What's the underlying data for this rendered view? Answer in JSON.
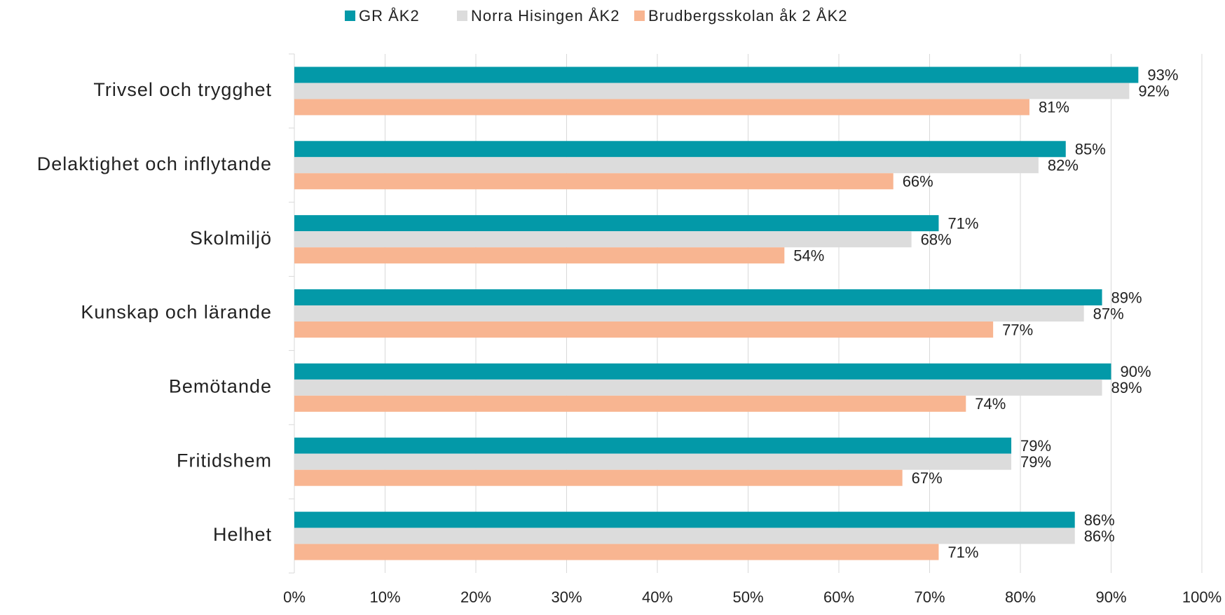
{
  "chart_data": {
    "type": "hbar",
    "categories": [
      "Trivsel och trygghet",
      "Delaktighet och inflytande",
      "Skolmiljö",
      "Kunskap och lärande",
      "Bemötande",
      "Fritidshem",
      "Helhet"
    ],
    "series": [
      {
        "name": "GR ÅK2",
        "color": "#0399a8",
        "values": [
          93,
          85,
          71,
          89,
          90,
          79,
          86
        ],
        "value_labels": [
          "93%",
          "85%",
          "71%",
          "89%",
          "90%",
          "79%",
          "86%"
        ]
      },
      {
        "name": "Norra Hisingen ÅK2",
        "color": "#dcdcdc",
        "values": [
          92,
          82,
          68,
          87,
          89,
          79,
          86
        ],
        "value_labels": [
          "92%",
          "82%",
          "68%",
          "87%",
          "89%",
          "79%",
          "86%"
        ]
      },
      {
        "name": "Brudbergsskolan åk 2 ÅK2",
        "color": "#f8b591",
        "values": [
          81,
          66,
          54,
          77,
          74,
          67,
          71
        ],
        "value_labels": [
          "81%",
          "66%",
          "54%",
          "77%",
          "74%",
          "67%",
          "71%"
        ]
      }
    ],
    "xlim": [
      0,
      100
    ],
    "xticks": [
      {
        "value": 0,
        "label": "0%"
      },
      {
        "value": 10,
        "label": "10%"
      },
      {
        "value": 20,
        "label": "20%"
      },
      {
        "value": 30,
        "label": "30%"
      },
      {
        "value": 40,
        "label": "40%"
      },
      {
        "value": 50,
        "label": "50%"
      },
      {
        "value": 60,
        "label": "60%"
      },
      {
        "value": 70,
        "label": "70%"
      },
      {
        "value": 80,
        "label": "80%"
      },
      {
        "value": 90,
        "label": "90%"
      },
      {
        "value": 100,
        "label": "100%"
      }
    ],
    "grid": true,
    "legend": "top"
  }
}
